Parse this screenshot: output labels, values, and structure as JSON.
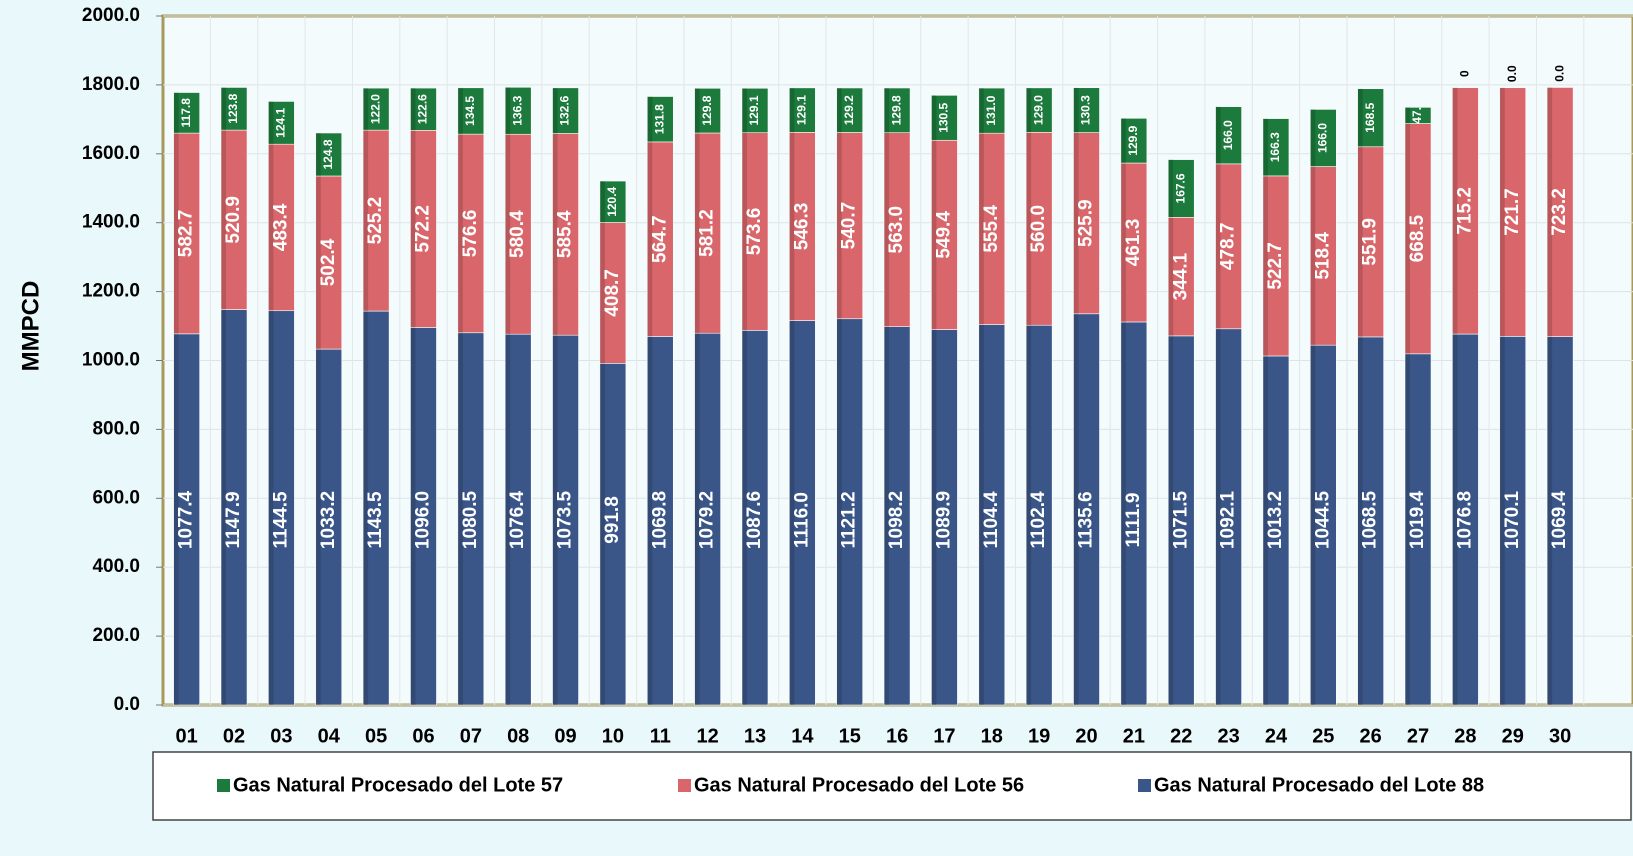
{
  "chart_data": {
    "type": "stacked_bar",
    "y_label": "MMPCD",
    "categories": [
      "01",
      "02",
      "03",
      "04",
      "05",
      "06",
      "07",
      "08",
      "09",
      "10",
      "11",
      "12",
      "13",
      "14",
      "15",
      "16",
      "17",
      "18",
      "19",
      "20",
      "21",
      "22",
      "23",
      "24",
      "25",
      "26",
      "27",
      "28",
      "29",
      "30"
    ],
    "ylim": [
      0,
      2000
    ],
    "yticks": [
      {
        "value": 0,
        "label": "0.0"
      },
      {
        "value": 200,
        "label": "200.0"
      },
      {
        "value": 400,
        "label": "400.0"
      },
      {
        "value": 600,
        "label": "600.0"
      },
      {
        "value": 800,
        "label": "800.0"
      },
      {
        "value": 1000,
        "label": "1000.0"
      },
      {
        "value": 1200,
        "label": "1200.0"
      },
      {
        "value": 1400,
        "label": "1400.0"
      },
      {
        "value": 1600,
        "label": "1600.0"
      },
      {
        "value": 1800,
        "label": "1800.0"
      },
      {
        "value": 2000,
        "label": "2000.0"
      }
    ],
    "grid": true,
    "legend": "bottom",
    "series": [
      {
        "name": "Gas Natural Procesado del Lote 88",
        "color": "#3a5688",
        "values": [
          1077.4,
          1147.9,
          1144.5,
          1033.2,
          1143.5,
          1096.0,
          1080.5,
          1076.4,
          1073.5,
          991.8,
          1069.8,
          1079.2,
          1087.6,
          1116.0,
          1121.2,
          1098.2,
          1089.9,
          1104.4,
          1102.4,
          1135.6,
          1111.9,
          1071.5,
          1092.1,
          1013.2,
          1044.5,
          1068.5,
          1019.4,
          1076.8,
          1070.1,
          1069.4
        ],
        "value_labels": [
          "1077.4",
          "1147.9",
          "1144.5",
          "1033.2",
          "1143.5",
          "1096.0",
          "1080.5",
          "1076.4",
          "1073.5",
          "991.8",
          "1069.8",
          "1079.2",
          "1087.6",
          "1116.0",
          "1121.2",
          "1098.2",
          "1089.9",
          "1104.4",
          "1102.4",
          "1135.6",
          "1111.9",
          "1071.5",
          "1092.1",
          "1013.2",
          "1044.5",
          "1068.5",
          "1019.4",
          "1076.8",
          "1070.1",
          "1069.4"
        ]
      },
      {
        "name": "Gas Natural Procesado del Lote 56",
        "color": "#d9666a",
        "values": [
          582.7,
          520.9,
          483.4,
          502.4,
          525.2,
          572.2,
          576.6,
          580.4,
          585.4,
          408.7,
          564.7,
          581.2,
          573.6,
          546.3,
          540.7,
          563.0,
          549.4,
          555.4,
          560.0,
          525.9,
          461.3,
          344.1,
          478.7,
          522.7,
          518.4,
          551.9,
          668.5,
          715.2,
          721.7,
          723.2
        ],
        "value_labels": [
          "582.7",
          "520.9",
          "483.4",
          "502.4",
          "525.2",
          "572.2",
          "576.6",
          "580.4",
          "585.4",
          "408.7",
          "564.7",
          "581.2",
          "573.6",
          "546.3",
          "540.7",
          "563.0",
          "549.4",
          "555.4",
          "560.0",
          "525.9",
          "461.3",
          "344.1",
          "478.7",
          "522.7",
          "518.4",
          "551.9",
          "668.5",
          "715.2",
          "721.7",
          "723.2"
        ]
      },
      {
        "name": "Gas Natural Procesado del Lote 57",
        "color": "#1c7a3c",
        "values": [
          117.8,
          123.8,
          124.1,
          124.8,
          122.0,
          122.6,
          134.5,
          136.3,
          132.6,
          120.4,
          131.8,
          129.8,
          129.1,
          129.1,
          129.2,
          129.8,
          130.5,
          131.0,
          129.0,
          130.3,
          129.9,
          167.6,
          166.0,
          166.3,
          166.0,
          168.5,
          47.0,
          0,
          0,
          0
        ],
        "value_labels": [
          "117.8",
          "123.8",
          "124.1",
          "124.8",
          "122.0",
          "122.6",
          "134.5",
          "136.3",
          "132.6",
          "120.4",
          "131.8",
          "129.8",
          "129.1",
          "129.1",
          "129.2",
          "129.8",
          "130.5",
          "131.0",
          "129.0",
          "130.3",
          "129.9",
          "167.6",
          "166.0",
          "166.3",
          "166.0",
          "168.5",
          "47.",
          "0",
          "0.0",
          "0.0"
        ]
      }
    ]
  }
}
